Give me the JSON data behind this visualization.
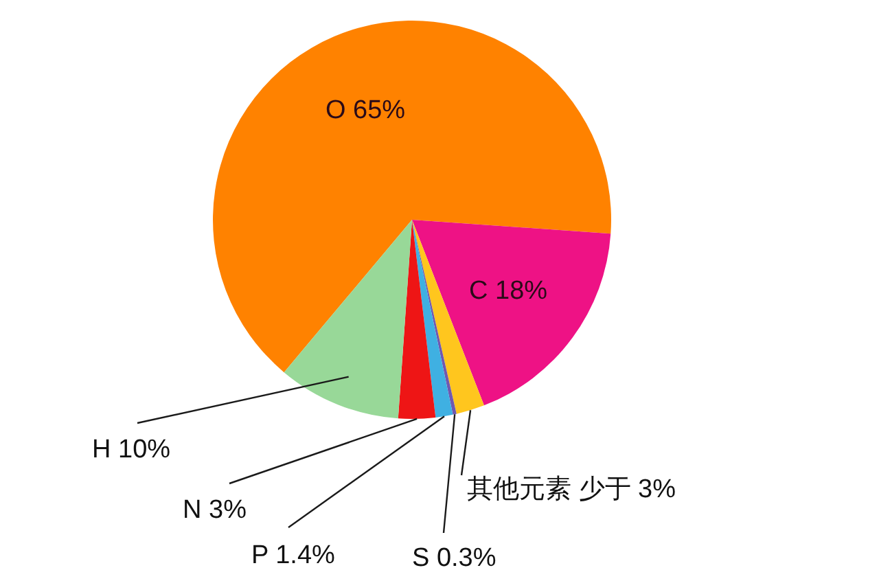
{
  "chart_data": {
    "type": "pie",
    "categories": [
      "O",
      "C",
      "其他元素",
      "S",
      "P",
      "N",
      "H"
    ],
    "values": [
      65,
      18,
      2.3,
      0.3,
      1.4,
      3,
      10
    ],
    "colors": [
      "#ff8200",
      "#ee1285",
      "#ffc61e",
      "#7058b0",
      "#3fb0e2",
      "#ee1515",
      "#98d898"
    ],
    "value_labels": [
      "65%",
      "18%",
      "少于 3%",
      "0.3%",
      "1.4%",
      "3%",
      "10%"
    ]
  }
}
